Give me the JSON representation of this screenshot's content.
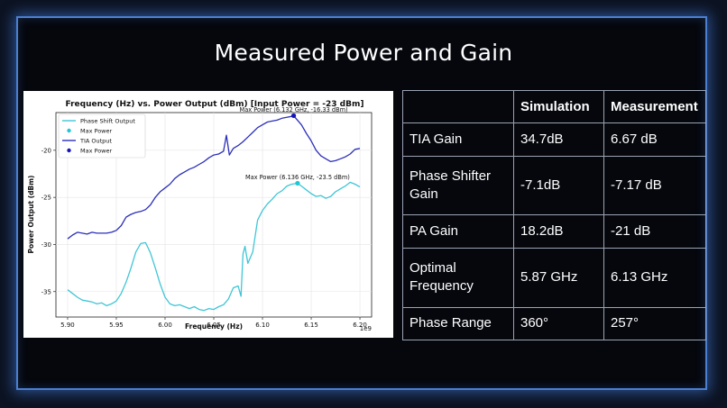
{
  "slide": {
    "title": "Measured Power and Gain"
  },
  "chart_data": {
    "type": "line",
    "title": "Frequency (Hz) vs. Power Output (dBm) [Input Power = -23 dBm]",
    "xlabel": "Frequency (Hz)",
    "ylabel": "Power Output (dBm)",
    "x_offset_label": "1e9",
    "xlim": [
      5.888,
      6.212
    ],
    "ylim": [
      -37.7,
      -16.0
    ],
    "x_ticks": [
      5.9,
      5.95,
      6.0,
      6.05,
      6.1,
      6.15,
      6.2
    ],
    "x_tick_labels": [
      "5.90",
      "5.95",
      "6.00",
      "6.05",
      "6.10",
      "6.15",
      "6.20"
    ],
    "y_ticks": [
      -20,
      -25,
      -30,
      -35
    ],
    "y_tick_labels": [
      "-20",
      "-25",
      "-30",
      "-35"
    ],
    "grid": true,
    "legend_position": "top-left",
    "legend": [
      "Phase Shift Output",
      "Max Power",
      "TIA Output",
      "Max Power"
    ],
    "series": [
      {
        "name": "Phase Shift Output",
        "color": "#3fc6d6",
        "x": [
          5.9,
          5.905,
          5.91,
          5.915,
          5.92,
          5.925,
          5.93,
          5.935,
          5.94,
          5.945,
          5.95,
          5.955,
          5.96,
          5.965,
          5.97,
          5.975,
          5.98,
          5.985,
          5.99,
          5.995,
          6.0,
          6.005,
          6.01,
          6.015,
          6.02,
          6.025,
          6.03,
          6.035,
          6.04,
          6.045,
          6.05,
          6.055,
          6.06,
          6.065,
          6.07,
          6.075,
          6.078,
          6.08,
          6.082,
          6.085,
          6.09,
          6.095,
          6.1,
          6.105,
          6.11,
          6.115,
          6.12,
          6.125,
          6.13,
          6.136,
          6.14,
          6.145,
          6.15,
          6.155,
          6.16,
          6.165,
          6.17,
          6.175,
          6.18,
          6.185,
          6.19,
          6.195,
          6.2
        ],
        "y": [
          -34.8,
          -35.2,
          -35.6,
          -35.9,
          -36.0,
          -36.1,
          -36.3,
          -36.2,
          -36.5,
          -36.3,
          -36.0,
          -35.2,
          -34.0,
          -32.5,
          -30.8,
          -29.9,
          -29.8,
          -30.9,
          -32.5,
          -34.2,
          -35.6,
          -36.3,
          -36.5,
          -36.4,
          -36.6,
          -36.8,
          -36.6,
          -36.9,
          -37.0,
          -36.8,
          -36.9,
          -36.6,
          -36.4,
          -35.8,
          -34.6,
          -34.4,
          -35.5,
          -31.0,
          -30.2,
          -32.0,
          -30.8,
          -27.4,
          -26.4,
          -25.7,
          -25.2,
          -24.6,
          -24.3,
          -23.8,
          -23.6,
          -23.5,
          -23.8,
          -24.2,
          -24.6,
          -24.9,
          -24.8,
          -25.1,
          -24.9,
          -24.4,
          -24.1,
          -23.8,
          -23.4,
          -23.6,
          -23.9
        ]
      },
      {
        "name": "TIA Output",
        "color": "#2b2fb8",
        "x": [
          5.9,
          5.905,
          5.91,
          5.915,
          5.92,
          5.925,
          5.93,
          5.935,
          5.94,
          5.945,
          5.95,
          5.955,
          5.96,
          5.965,
          5.97,
          5.975,
          5.98,
          5.985,
          5.99,
          5.995,
          6.0,
          6.005,
          6.01,
          6.015,
          6.02,
          6.025,
          6.03,
          6.035,
          6.04,
          6.045,
          6.05,
          6.055,
          6.06,
          6.063,
          6.066,
          6.07,
          6.075,
          6.08,
          6.085,
          6.09,
          6.095,
          6.1,
          6.105,
          6.11,
          6.115,
          6.12,
          6.125,
          6.13,
          6.132,
          6.135,
          6.14,
          6.145,
          6.15,
          6.155,
          6.16,
          6.165,
          6.17,
          6.175,
          6.18,
          6.185,
          6.19,
          6.195,
          6.2
        ],
        "y": [
          -29.4,
          -29.0,
          -28.7,
          -28.8,
          -28.9,
          -28.7,
          -28.8,
          -28.8,
          -28.8,
          -28.7,
          -28.5,
          -28.0,
          -27.1,
          -26.8,
          -26.6,
          -26.5,
          -26.3,
          -25.8,
          -25.0,
          -24.4,
          -24.0,
          -23.6,
          -23.0,
          -22.6,
          -22.3,
          -22.0,
          -21.8,
          -21.5,
          -21.2,
          -20.8,
          -20.5,
          -20.4,
          -20.1,
          -18.4,
          -20.5,
          -19.8,
          -19.5,
          -19.1,
          -18.6,
          -18.1,
          -17.6,
          -17.3,
          -17.0,
          -16.9,
          -16.8,
          -16.6,
          -16.5,
          -16.4,
          -16.33,
          -16.7,
          -17.3,
          -18.2,
          -19.0,
          -20.0,
          -20.6,
          -20.9,
          -21.2,
          -21.1,
          -20.9,
          -20.7,
          -20.4,
          -19.9,
          -19.8
        ]
      }
    ],
    "markers": [
      {
        "name": "Max Power",
        "x": 6.136,
        "y": -23.5,
        "color": "#1fc7d6",
        "label": "Max Power (6.136 GHz, -23.5 dBm)"
      },
      {
        "name": "Max Power",
        "x": 6.132,
        "y": -16.33,
        "color": "#1515b8",
        "label": "Max Power (6.132 GHz, -16.33 dBm)"
      }
    ]
  },
  "table": {
    "headers": [
      "",
      "Simulation",
      "Measurement"
    ],
    "rows": [
      [
        "TIA Gain",
        "34.7dB",
        "6.67 dB"
      ],
      [
        "Phase Shifter Gain",
        "-7.1dB",
        "-7.17 dB"
      ],
      [
        "PA Gain",
        "18.2dB",
        "-21 dB"
      ],
      [
        "Optimal Frequency",
        "5.87 GHz",
        "6.13 GHz"
      ],
      [
        "Phase Range",
        "360°",
        "257°"
      ]
    ]
  }
}
